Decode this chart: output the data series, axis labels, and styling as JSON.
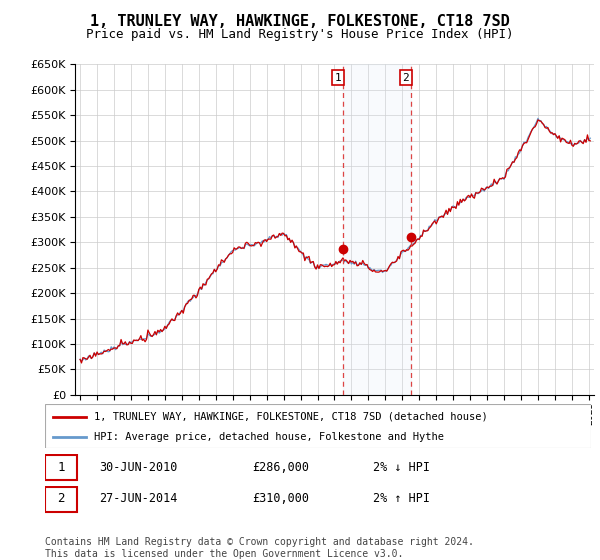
{
  "title": "1, TRUNLEY WAY, HAWKINGE, FOLKESTONE, CT18 7SD",
  "subtitle": "Price paid vs. HM Land Registry's House Price Index (HPI)",
  "legend_line1": "1, TRUNLEY WAY, HAWKINGE, FOLKESTONE, CT18 7SD (detached house)",
  "legend_line2": "HPI: Average price, detached house, Folkestone and Hythe",
  "transaction1_label": "1",
  "transaction1_date": "30-JUN-2010",
  "transaction1_price": "£286,000",
  "transaction1_hpi": "2% ↓ HPI",
  "transaction2_label": "2",
  "transaction2_date": "27-JUN-2014",
  "transaction2_price": "£310,000",
  "transaction2_hpi": "2% ↑ HPI",
  "footer": "Contains HM Land Registry data © Crown copyright and database right 2024.\nThis data is licensed under the Open Government Licence v3.0.",
  "hpi_color": "#6699cc",
  "price_color": "#cc0000",
  "marker_color": "#cc0000",
  "shaded_color": "#dce9f5",
  "vline_color": "#dd4444",
  "ylim_min": 0,
  "ylim_max": 650000,
  "x_start_year": 1995,
  "x_end_year": 2025,
  "transaction1_year": 2010.5,
  "transaction2_year": 2014.5,
  "transaction1_value": 286000,
  "transaction2_value": 310000,
  "background_color": "#ffffff",
  "grid_color": "#cccccc"
}
